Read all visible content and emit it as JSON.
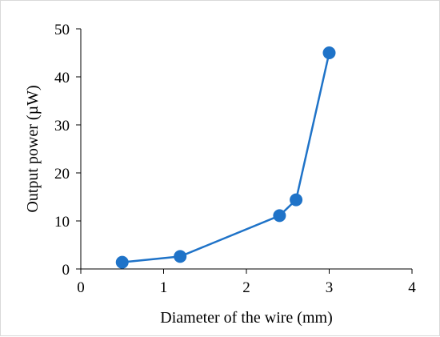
{
  "chart_data": {
    "type": "scatter",
    "title": "",
    "xlabel": "Diameter of the wire (mm)",
    "ylabel": "Output power (µW)",
    "xlim": [
      0,
      4
    ],
    "ylim": [
      0,
      50
    ],
    "x_ticks": [
      0,
      1,
      2,
      3,
      4
    ],
    "y_ticks": [
      0,
      10,
      20,
      30,
      40,
      50
    ],
    "grid": false,
    "legend": "none",
    "series": [
      {
        "x": [
          0.5,
          1.2,
          2.4,
          2.6,
          3.0
        ],
        "y": [
          1.4,
          2.6,
          11.1,
          14.4,
          45.0
        ],
        "connected": true
      }
    ],
    "colors": {
      "series": "#1f73c8",
      "axis": "#000000",
      "frame": "#d9d9d9"
    }
  }
}
